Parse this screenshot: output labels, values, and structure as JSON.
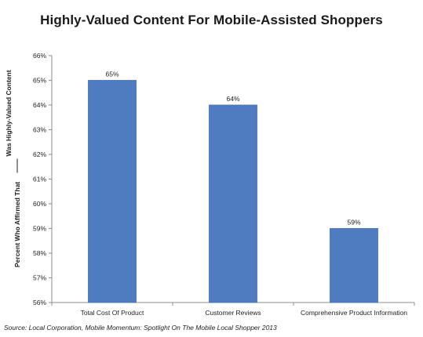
{
  "chart_data": {
    "type": "bar",
    "title": "Highly-Valued Content For Mobile-Assisted Shoppers",
    "ylabel_line1": "Percent Who Affirmed That",
    "ylabel_line2": "Was Highly-Valued Content",
    "xlabel": "",
    "categories": [
      "Total Cost Of Product",
      "Customer Reviews",
      "Comprehensive Product Information"
    ],
    "values": [
      65,
      64,
      59
    ],
    "data_labels": [
      "65%",
      "64%",
      "59%"
    ],
    "ylim": [
      56,
      66
    ],
    "yticks": [
      56,
      57,
      58,
      59,
      60,
      61,
      62,
      63,
      64,
      65,
      66
    ],
    "ytick_labels": [
      "56%",
      "57%",
      "58%",
      "59%",
      "60%",
      "61%",
      "62%",
      "63%",
      "64%",
      "65%",
      "66%"
    ],
    "grid": false,
    "bar_color": "#4f7cc0",
    "bar_edge_color": "#4472b8",
    "axis_color": "#8c8c8c"
  },
  "source": "Source: Local Corporation, Mobile Momentum: Spotlight On The Mobile Local Shopper 2013"
}
